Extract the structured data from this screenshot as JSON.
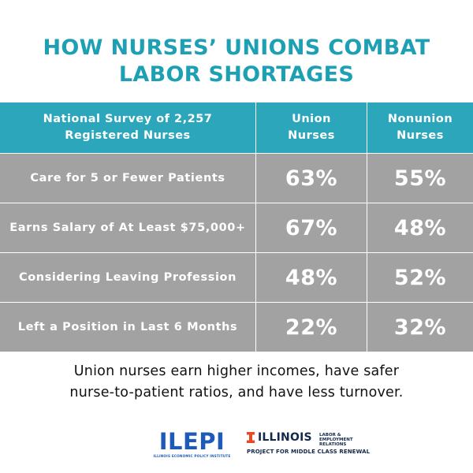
{
  "title": {
    "line1": "HOW NURSES’ UNIONS COMBAT",
    "line2": "LABOR SHORTAGES"
  },
  "chart_data": {
    "type": "table",
    "columns": [
      "National Survey of 2,257 Registered Nurses",
      "Union Nurses",
      "Nonunion Nurses"
    ],
    "rows": [
      {
        "label": "Care for 5 or Fewer Patients",
        "union": "63%",
        "nonunion": "55%"
      },
      {
        "label": "Earns Salary of At Least $75,000+",
        "union": "67%",
        "nonunion": "48%"
      },
      {
        "label": "Considering Leaving Profession",
        "union": "48%",
        "nonunion": "52%"
      },
      {
        "label": "Left a Position in Last 6 Months",
        "union": "22%",
        "nonunion": "32%"
      }
    ]
  },
  "header": {
    "col0_line1": "National Survey of 2,257",
    "col0_line2": "Registered Nurses",
    "col1_line1": "Union",
    "col1_line2": "Nurses",
    "col2_line1": "Nonunion",
    "col2_line2": "Nurses"
  },
  "caption": {
    "line1": "Union nurses earn higher incomes, have safer",
    "line2": "nurse-to-patient ratios, and have less turnover."
  },
  "logos": {
    "ilepi": "ILEPI",
    "ilepi_sub": "ILLINOIS ECONOMIC POLICY INSTITUTE",
    "illinois": "ILLINOIS",
    "ler_line1": "LABOR & EMPLOYMENT",
    "ler_line2": "RELATIONS",
    "project": "PROJECT FOR MIDDLE CLASS RENEWAL"
  },
  "colors": {
    "title": "#1ea0b4",
    "header_bg": "#2ca6ba",
    "row_bg": "#a3a2a2",
    "ilepi_blue": "#1e5bb8",
    "illinois_orange": "#e84a27",
    "illinois_navy": "#13294b"
  }
}
